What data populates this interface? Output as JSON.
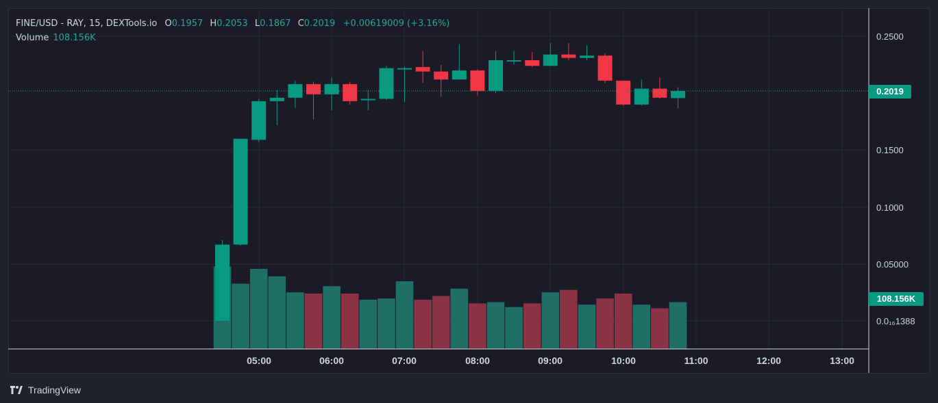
{
  "legend": {
    "symbol": "FINE/USD - RAY, 15, DEXTools.io",
    "o_label": "O",
    "o_value": "0.1957",
    "h_label": "H",
    "h_value": "0.2053",
    "l_label": "L",
    "l_value": "0.1867",
    "c_label": "C",
    "c_value": "0.2019",
    "change": "+0.00619009 (+3.16%)",
    "volume_label": "Volume",
    "volume_value": "108.156K"
  },
  "footer": {
    "brand": "TradingView",
    "logo_icon": "tradingview-logo-icon"
  },
  "colors": {
    "up": "#089981",
    "down": "#f23645",
    "vol_up": "#1f6f65",
    "vol_down": "#8b3345",
    "grid": "#262a36",
    "text": "#d1d4dc",
    "price_line": "#26a69a"
  },
  "chart_data": {
    "type": "candlestick",
    "title": "FINE/USD - RAY, 15, DEXTools.io",
    "y_ticks": [
      "0.2500",
      "0.1500",
      "0.1000",
      "0.05000",
      "0.0₁₆1388"
    ],
    "x_ticks": [
      "05:00",
      "06:00",
      "07:00",
      "08:00",
      "09:00",
      "10:00",
      "11:00",
      "12:00",
      "13:00"
    ],
    "last_price": "0.2019",
    "last_volume": "108.156K",
    "candles": [
      {
        "o": 0.0,
        "h": 0.071,
        "l": 0.0,
        "c": 0.067,
        "v": 0.67
      },
      {
        "o": 0.067,
        "h": 0.16,
        "l": 0.066,
        "c": 0.16,
        "v": 0.53
      },
      {
        "o": 0.159,
        "h": 0.195,
        "l": 0.157,
        "c": 0.193,
        "v": 0.65
      },
      {
        "o": 0.193,
        "h": 0.203,
        "l": 0.172,
        "c": 0.196,
        "v": 0.59
      },
      {
        "o": 0.196,
        "h": 0.211,
        "l": 0.187,
        "c": 0.208,
        "v": 0.46
      },
      {
        "o": 0.208,
        "h": 0.21,
        "l": 0.177,
        "c": 0.199,
        "v": 0.45
      },
      {
        "o": 0.199,
        "h": 0.214,
        "l": 0.185,
        "c": 0.208,
        "v": 0.51
      },
      {
        "o": 0.208,
        "h": 0.21,
        "l": 0.19,
        "c": 0.193,
        "v": 0.45
      },
      {
        "o": 0.194,
        "h": 0.203,
        "l": 0.185,
        "c": 0.195,
        "v": 0.4
      },
      {
        "o": 0.195,
        "h": 0.224,
        "l": 0.194,
        "c": 0.222,
        "v": 0.41
      },
      {
        "o": 0.222,
        "h": 0.223,
        "l": 0.192,
        "c": 0.222,
        "v": 0.55
      },
      {
        "o": 0.223,
        "h": 0.237,
        "l": 0.209,
        "c": 0.219,
        "v": 0.4
      },
      {
        "o": 0.219,
        "h": 0.225,
        "l": 0.197,
        "c": 0.212,
        "v": 0.43
      },
      {
        "o": 0.212,
        "h": 0.243,
        "l": 0.212,
        "c": 0.22,
        "v": 0.49
      },
      {
        "o": 0.22,
        "h": 0.221,
        "l": 0.198,
        "c": 0.202,
        "v": 0.37
      },
      {
        "o": 0.202,
        "h": 0.237,
        "l": 0.2,
        "c": 0.229,
        "v": 0.38
      },
      {
        "o": 0.229,
        "h": 0.237,
        "l": 0.225,
        "c": 0.229,
        "v": 0.34
      },
      {
        "o": 0.229,
        "h": 0.236,
        "l": 0.223,
        "c": 0.224,
        "v": 0.37
      },
      {
        "o": 0.224,
        "h": 0.244,
        "l": 0.224,
        "c": 0.234,
        "v": 0.46
      },
      {
        "o": 0.234,
        "h": 0.244,
        "l": 0.229,
        "c": 0.231,
        "v": 0.48
      },
      {
        "o": 0.231,
        "h": 0.242,
        "l": 0.229,
        "c": 0.233,
        "v": 0.36
      },
      {
        "o": 0.233,
        "h": 0.235,
        "l": 0.209,
        "c": 0.211,
        "v": 0.41
      },
      {
        "o": 0.211,
        "h": 0.211,
        "l": 0.189,
        "c": 0.19,
        "v": 0.45
      },
      {
        "o": 0.19,
        "h": 0.212,
        "l": 0.189,
        "c": 0.204,
        "v": 0.36
      },
      {
        "o": 0.204,
        "h": 0.214,
        "l": 0.195,
        "c": 0.196,
        "v": 0.33
      },
      {
        "o": 0.1957,
        "h": 0.2053,
        "l": 0.1867,
        "c": 0.2019,
        "v": 0.38
      }
    ]
  }
}
